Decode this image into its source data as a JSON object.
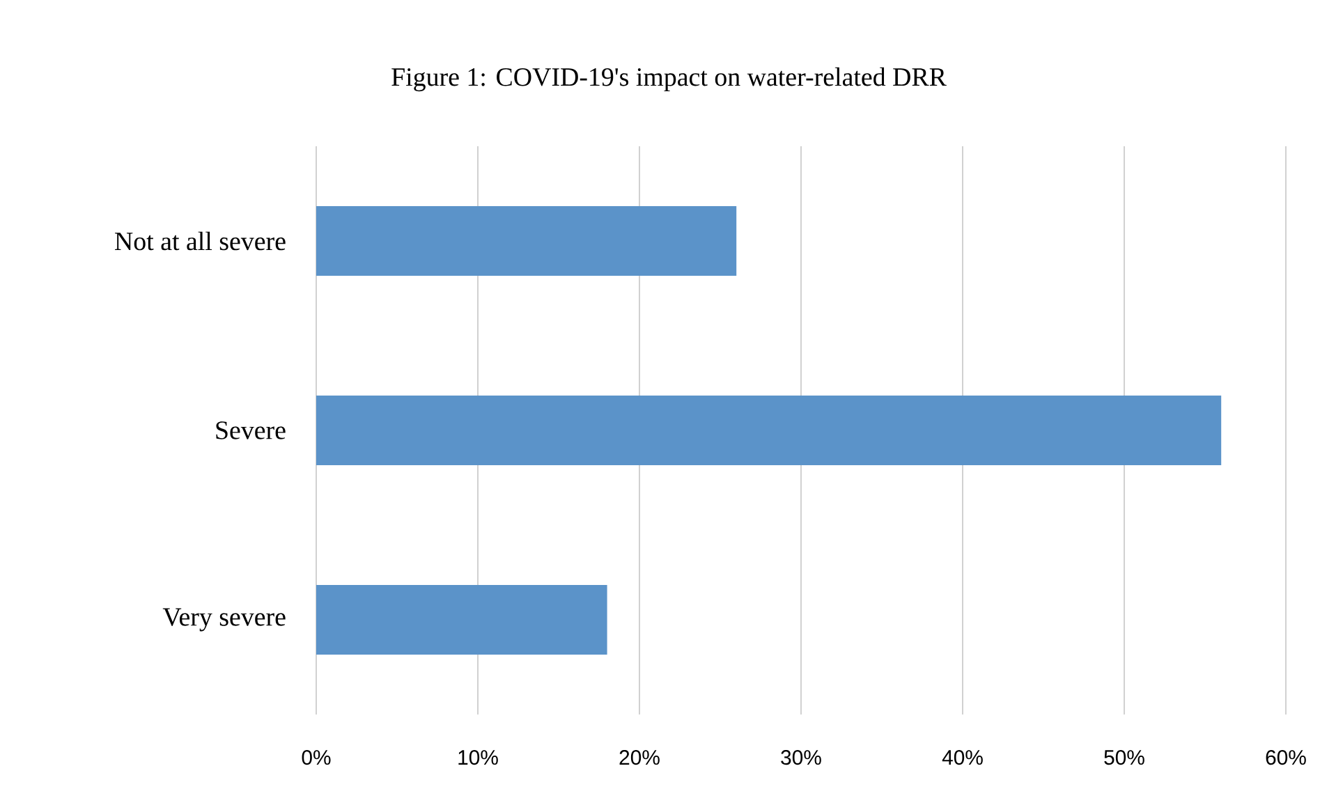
{
  "chart_data": {
    "type": "bar",
    "orientation": "horizontal",
    "title": "Figure 1: COVID-19's impact on water-related DRR",
    "categories": [
      "Not at all severe",
      "Severe",
      "Very severe"
    ],
    "values": [
      26,
      56,
      18
    ],
    "color": "#5b93c9",
    "xlim": [
      0,
      60
    ],
    "xticks": [
      {
        "value": 0,
        "label": "0%"
      },
      {
        "value": 10,
        "label": "10%"
      },
      {
        "value": 20,
        "label": "20%"
      },
      {
        "value": 30,
        "label": "30%"
      },
      {
        "value": 40,
        "label": "40%"
      },
      {
        "value": 50,
        "label": "50%"
      },
      {
        "value": 60,
        "label": "60%"
      }
    ],
    "grid": "x"
  }
}
